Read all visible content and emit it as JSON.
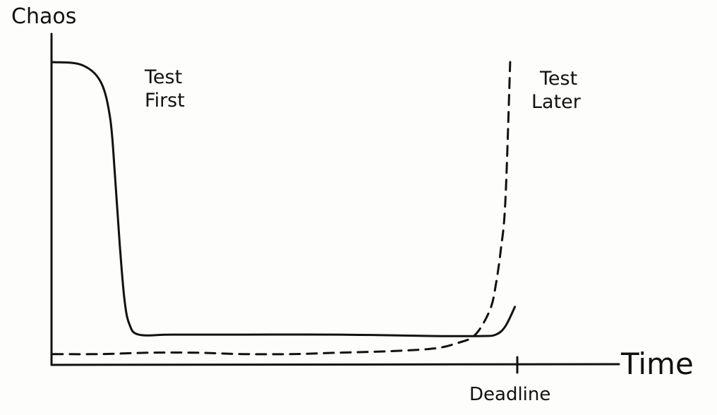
{
  "chart_data": {
    "type": "line",
    "title": "",
    "ylabel": "Chaos",
    "xlabel": "Time",
    "grid": false,
    "legend": "none",
    "annotations": [
      {
        "text": "Deadline",
        "x": 0.975
      }
    ],
    "xlim": [
      0,
      1.2
    ],
    "ylim": [
      0,
      1
    ],
    "series": [
      {
        "name": "Test First",
        "style": "solid",
        "color": "#111111",
        "x": [
          0,
          0.06,
          0.1,
          0.12,
          0.13,
          0.14,
          0.15,
          0.16,
          0.18,
          0.25,
          0.4,
          0.6,
          0.8,
          0.9,
          0.93,
          0.95,
          0.97
        ],
        "y": [
          1.0,
          0.99,
          0.93,
          0.8,
          0.6,
          0.35,
          0.15,
          0.06,
          0.02,
          0.02,
          0.02,
          0.02,
          0.015,
          0.015,
          0.02,
          0.05,
          0.12
        ]
      },
      {
        "name": "Test Later",
        "style": "dashed",
        "color": "#111111",
        "x": [
          0,
          0.1,
          0.2,
          0.3,
          0.4,
          0.5,
          0.6,
          0.7,
          0.8,
          0.85,
          0.88,
          0.9,
          0.92,
          0.93,
          0.94,
          0.95,
          0.96
        ],
        "y": [
          -0.05,
          -0.05,
          -0.045,
          -0.045,
          -0.05,
          -0.05,
          -0.045,
          -0.04,
          -0.03,
          -0.01,
          0.01,
          0.05,
          0.12,
          0.2,
          0.32,
          0.5,
          1.0
        ]
      }
    ]
  }
}
